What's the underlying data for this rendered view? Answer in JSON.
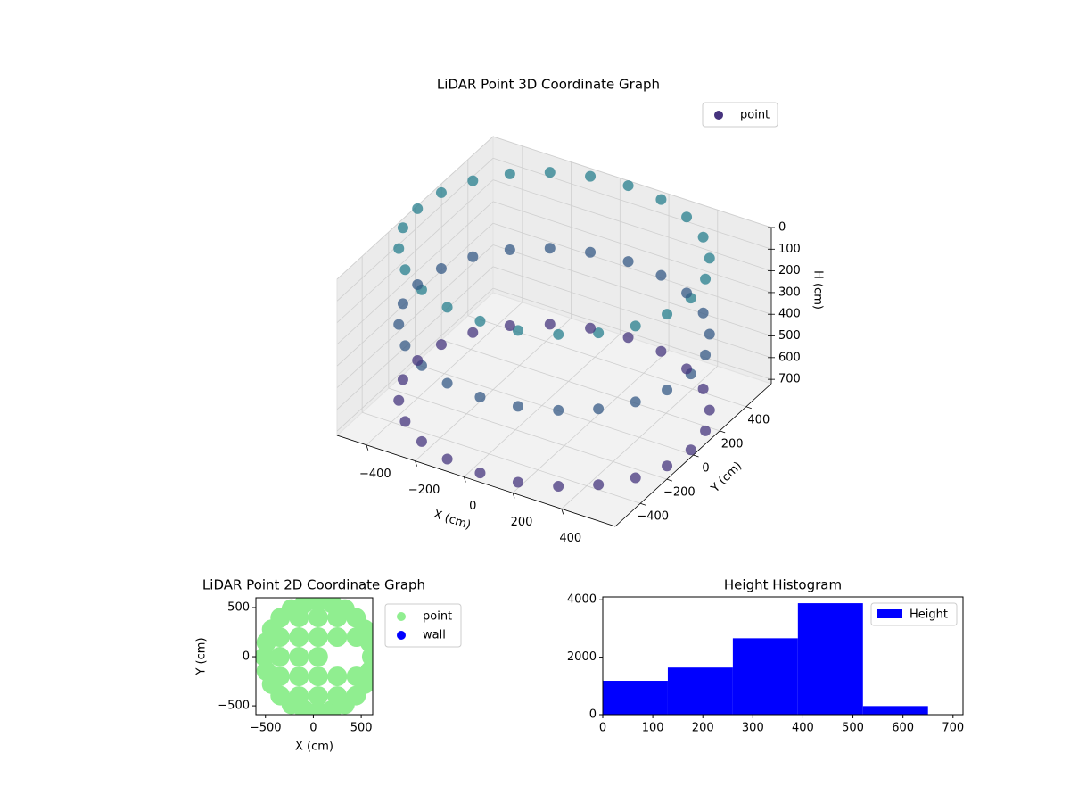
{
  "chart_data": [
    {
      "type": "scatter3d",
      "title": "LiDAR Point 3D Coordinate Graph",
      "x_label": "X (cm)",
      "y_label": "Y (cm)",
      "z_label": "H (cm)",
      "xlim": [
        -520,
        620
      ],
      "ylim": [
        -590,
        590
      ],
      "zlim": [
        0,
        720
      ],
      "z_inverted": true,
      "xticks": [
        {
          "value": -400,
          "label": "−400"
        },
        {
          "value": -200,
          "label": "−200"
        },
        0,
        200,
        400
      ],
      "yticks": [
        {
          "value": -400,
          "label": "−400"
        },
        {
          "value": -200,
          "label": "−200"
        },
        0,
        200,
        400
      ],
      "zticks": [
        0,
        100,
        200,
        300,
        400,
        500,
        600,
        700
      ],
      "colormap": [
        "#46337e",
        "#277f8e"
      ],
      "legend": "upper right",
      "series": [
        {
          "name": "point",
          "x": [
            610,
            591,
            535,
            446,
            330,
            195,
            50,
            -95,
            -230,
            -346,
            -435,
            -491,
            -510,
            -491,
            -435,
            -346,
            -230,
            -95,
            50,
            195,
            330,
            446,
            535,
            591,
            610,
            591,
            535,
            446,
            330,
            195,
            50,
            -95,
            -230,
            -346,
            -435,
            -491,
            -510,
            -491,
            -435,
            -346,
            -230,
            -95,
            50,
            195,
            330,
            446,
            535,
            591,
            610,
            591,
            535,
            446,
            330,
            195,
            50,
            -95,
            -230,
            -346,
            -435,
            -491,
            -510,
            -491,
            -435,
            -346,
            -230,
            -95,
            50,
            195,
            330,
            446,
            535,
            591
          ],
          "y": [
            0,
            145,
            280,
            396,
            485,
            541,
            560,
            541,
            485,
            396,
            280,
            145,
            0,
            -145,
            -280,
            -396,
            -485,
            -541,
            -560,
            -541,
            -485,
            -396,
            -280,
            -145,
            0,
            145,
            280,
            396,
            485,
            541,
            560,
            541,
            485,
            396,
            280,
            145,
            0,
            -145,
            -280,
            -396,
            -485,
            -541,
            -560,
            -541,
            -485,
            -396,
            -280,
            -145,
            0,
            145,
            280,
            396,
            485,
            541,
            560,
            541,
            485,
            396,
            280,
            145,
            0,
            -145,
            -280,
            -396,
            -485,
            -541,
            -560,
            -541,
            -485,
            -396,
            -280,
            -145
          ],
          "z": [
            0,
            0,
            0,
            0,
            0,
            0,
            0,
            0,
            0,
            0,
            0,
            0,
            0,
            0,
            0,
            0,
            0,
            0,
            0,
            0,
            0,
            0,
            0,
            0,
            350,
            350,
            350,
            350,
            350,
            350,
            350,
            350,
            350,
            350,
            350,
            350,
            350,
            350,
            350,
            350,
            350,
            350,
            350,
            350,
            350,
            350,
            350,
            350,
            700,
            700,
            700,
            700,
            700,
            700,
            700,
            700,
            700,
            700,
            700,
            700,
            700,
            700,
            700,
            700,
            700,
            700,
            700,
            700,
            700,
            700,
            700,
            700
          ]
        }
      ]
    },
    {
      "type": "scatter",
      "title": "LiDAR Point 2D Coordinate Graph",
      "x_label": "X (cm)",
      "y_label": "Y (cm)",
      "xlim": [
        -600,
        620
      ],
      "ylim": [
        -590,
        600
      ],
      "xticks": [
        {
          "value": -500,
          "label": "−500"
        },
        0,
        500
      ],
      "yticks": [
        {
          "value": -500,
          "label": "−500"
        },
        0,
        500
      ],
      "legend": "outside right",
      "series": [
        {
          "name": "point",
          "color": "#90ee90",
          "x": [
            610,
            591,
            535,
            446,
            330,
            195,
            50,
            -95,
            -230,
            -346,
            -435,
            -491,
            -510,
            -491,
            -435,
            -346,
            -230,
            -95,
            50,
            195,
            330,
            446,
            535,
            591,
            -350,
            -350,
            -350,
            -150,
            -150,
            -150,
            -150,
            -150,
            50,
            50,
            50,
            50,
            50,
            250,
            250,
            250,
            250,
            450,
            450
          ],
          "y": [
            0,
            145,
            280,
            396,
            485,
            541,
            560,
            541,
            485,
            396,
            280,
            145,
            0,
            -145,
            -280,
            -396,
            -485,
            -541,
            -560,
            -541,
            -485,
            -396,
            -280,
            -145,
            -200,
            0,
            200,
            -400,
            -200,
            0,
            200,
            400,
            -400,
            -200,
            0,
            200,
            400,
            -400,
            -200,
            200,
            400,
            -200,
            200
          ]
        },
        {
          "name": "wall",
          "color": "#0000ff",
          "x": [],
          "y": []
        }
      ]
    },
    {
      "type": "histogram",
      "title": "Height Histogram",
      "name": "Height",
      "color": "#0000ff",
      "bins": [
        0,
        130,
        260,
        390,
        520,
        650
      ],
      "values": [
        1180,
        1640,
        2660,
        3880,
        300
      ],
      "xlim": [
        0,
        720
      ],
      "ylim": [
        0,
        4100
      ],
      "xticks": [
        0,
        100,
        200,
        300,
        400,
        500,
        600,
        700
      ],
      "yticks": [
        0,
        2000,
        4000
      ],
      "legend": "upper right"
    }
  ]
}
